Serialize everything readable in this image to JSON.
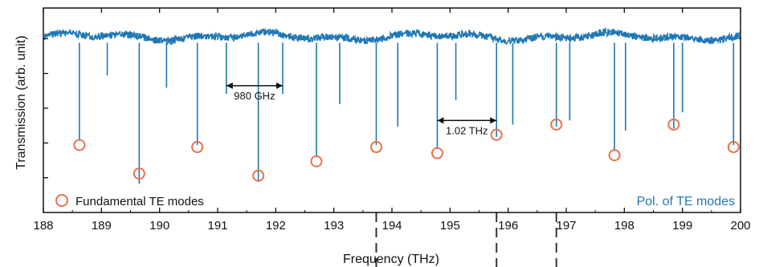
{
  "chart_data": {
    "type": "line",
    "xlabel": "Frequency (THz)",
    "ylabel": "Transmission (arb. unit)",
    "xlim": [
      188,
      200
    ],
    "ylim": [
      0,
      1
    ],
    "x_ticks": [
      "188",
      "189",
      "190",
      "191",
      "192",
      "193",
      "194",
      "195",
      "196",
      "197",
      "198",
      "199",
      "200"
    ],
    "grid": false,
    "colors": {
      "trace": "#1f77b4",
      "markers": "#e8714a",
      "pol_text": "#1f77b4"
    },
    "series": [
      {
        "name": "Pol. of TE modes",
        "baseline": 0.86,
        "dips": [
          {
            "x": 188.62,
            "y": 0.35
          },
          {
            "x": 189.1,
            "y": 0.67
          },
          {
            "x": 189.65,
            "y": 0.14
          },
          {
            "x": 190.12,
            "y": 0.61
          },
          {
            "x": 190.65,
            "y": 0.33
          },
          {
            "x": 191.15,
            "y": 0.58
          },
          {
            "x": 191.7,
            "y": 0.15
          },
          {
            "x": 192.12,
            "y": 0.58
          },
          {
            "x": 192.7,
            "y": 0.27
          },
          {
            "x": 193.1,
            "y": 0.53
          },
          {
            "x": 193.73,
            "y": 0.33
          },
          {
            "x": 194.1,
            "y": 0.42
          },
          {
            "x": 194.78,
            "y": 0.31
          },
          {
            "x": 195.1,
            "y": 0.55
          },
          {
            "x": 195.8,
            "y": 0.37
          },
          {
            "x": 196.08,
            "y": 0.43
          },
          {
            "x": 196.83,
            "y": 0.42
          },
          {
            "x": 197.06,
            "y": 0.45
          },
          {
            "x": 197.83,
            "y": 0.3
          },
          {
            "x": 198.02,
            "y": 0.4
          },
          {
            "x": 198.85,
            "y": 0.41
          },
          {
            "x": 199.0,
            "y": 0.49
          },
          {
            "x": 199.88,
            "y": 0.33
          }
        ]
      },
      {
        "name": "Fundamental TE modes",
        "points": [
          {
            "x": 188.62,
            "y": 0.33
          },
          {
            "x": 189.65,
            "y": 0.19
          },
          {
            "x": 190.65,
            "y": 0.32
          },
          {
            "x": 191.7,
            "y": 0.18
          },
          {
            "x": 192.7,
            "y": 0.25
          },
          {
            "x": 193.73,
            "y": 0.32
          },
          {
            "x": 194.78,
            "y": 0.29
          },
          {
            "x": 195.8,
            "y": 0.38
          },
          {
            "x": 196.83,
            "y": 0.43
          },
          {
            "x": 197.83,
            "y": 0.28
          },
          {
            "x": 198.85,
            "y": 0.43
          },
          {
            "x": 199.88,
            "y": 0.32
          }
        ]
      }
    ],
    "annotations": [
      {
        "text": "980 GHz",
        "x1": 191.15,
        "x2": 192.12,
        "y": 0.62
      },
      {
        "text": "1.02 THz",
        "x1": 194.78,
        "x2": 195.8,
        "y": 0.45
      }
    ],
    "dashed_markers_x": [
      193.73,
      195.8,
      196.83
    ],
    "legend": {
      "position": "bottom-left",
      "label": "Fundamental TE modes"
    },
    "pol_label": "Pol. of TE modes"
  }
}
